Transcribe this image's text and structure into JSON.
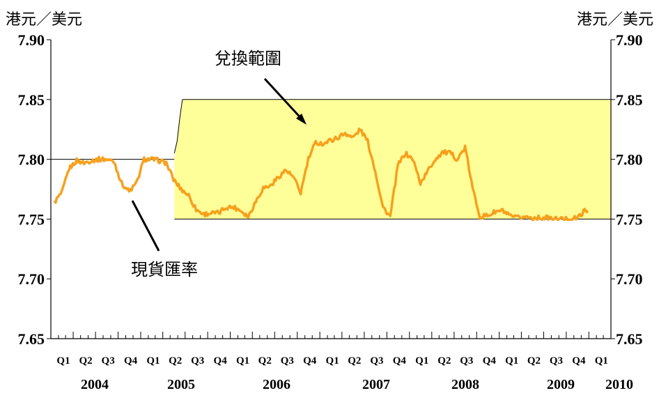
{
  "chart_data": {
    "type": "line",
    "units_left": "港元／美元",
    "units_right": "港元／美元",
    "ylim": [
      7.65,
      7.9
    ],
    "yticks": [
      "7.65",
      "7.70",
      "7.75",
      "7.80",
      "7.85",
      "7.90"
    ],
    "grid": false,
    "quarter_labels": [
      "Q1",
      "Q2",
      "Q3",
      "Q4",
      "Q1",
      "Q2",
      "Q3",
      "Q4",
      "Q1",
      "Q2",
      "Q3",
      "Q4",
      "Q1",
      "Q2",
      "Q3",
      "Q4",
      "Q1",
      "Q2",
      "Q3",
      "Q4",
      "Q1",
      "Q2",
      "Q3",
      "Q4",
      "Q1"
    ],
    "year_labels": [
      "2004",
      "2005",
      "2006",
      "2007",
      "2008",
      "2009",
      "2010"
    ],
    "band": {
      "name": "兌換範圍",
      "lower": 7.75,
      "upper": 7.85,
      "start": "2005-05-18",
      "end_of_transition": "2005-06-20"
    },
    "pre_band_reference": 7.8,
    "annotations": {
      "band_label": "兌換範圍",
      "spot_label": "現貨匯率"
    },
    "series": [
      {
        "name": "現貨匯率",
        "color": "#F7A01E",
        "x": [
          "2004-01",
          "2004-02",
          "2004-03",
          "2004-04",
          "2004-05",
          "2004-06",
          "2004-07",
          "2004-08",
          "2004-09",
          "2004-10",
          "2004-11",
          "2004-12",
          "2005-01",
          "2005-02",
          "2005-03",
          "2005-04",
          "2005-05",
          "2005-06",
          "2005-07",
          "2005-08",
          "2005-09",
          "2005-10",
          "2005-11",
          "2005-12",
          "2006-01",
          "2006-02",
          "2006-03",
          "2006-04",
          "2006-05",
          "2006-06",
          "2006-07",
          "2006-08",
          "2006-09",
          "2006-10",
          "2006-11",
          "2006-12",
          "2007-01",
          "2007-02",
          "2007-03",
          "2007-04",
          "2007-05",
          "2007-06",
          "2007-07",
          "2007-08",
          "2007-09",
          "2007-10",
          "2007-11",
          "2007-12",
          "2008-01",
          "2008-02",
          "2008-03",
          "2008-04",
          "2008-05",
          "2008-06",
          "2008-07",
          "2008-08",
          "2008-09",
          "2008-10",
          "2008-11",
          "2008-12",
          "2009-01",
          "2009-02",
          "2009-03",
          "2009-04",
          "2009-05",
          "2009-06",
          "2009-07",
          "2009-08",
          "2009-09",
          "2009-10",
          "2009-11",
          "2009-12"
        ],
        "y": [
          7.764,
          7.772,
          7.792,
          7.799,
          7.797,
          7.799,
          7.8,
          7.8,
          7.798,
          7.78,
          7.773,
          7.78,
          7.8,
          7.8,
          7.799,
          7.797,
          7.783,
          7.775,
          7.77,
          7.758,
          7.754,
          7.755,
          7.755,
          7.76,
          7.76,
          7.757,
          7.752,
          7.765,
          7.776,
          7.778,
          7.785,
          7.791,
          7.785,
          7.772,
          7.8,
          7.814,
          7.813,
          7.816,
          7.818,
          7.822,
          7.818,
          7.825,
          7.815,
          7.79,
          7.76,
          7.752,
          7.795,
          7.805,
          7.8,
          7.78,
          7.79,
          7.8,
          7.806,
          7.805,
          7.8,
          7.81,
          7.775,
          7.752,
          7.753,
          7.756,
          7.757,
          7.752,
          7.751,
          7.752,
          7.751,
          7.751,
          7.751,
          7.75,
          7.75,
          7.75,
          7.751,
          7.757
        ]
      }
    ]
  }
}
